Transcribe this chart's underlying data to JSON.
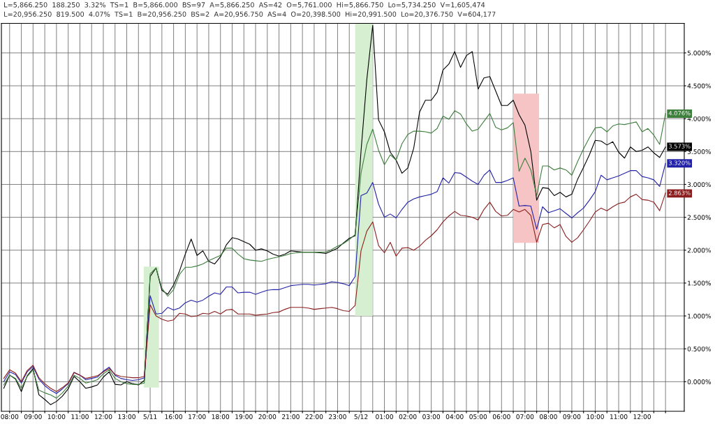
{
  "chart_data": {
    "type": "line",
    "annotations": [
      "L=5,866.250  188.250  3.32%  TS=1  B=5,866.000  BS=97  A=5,866.250  AS=42  O=5,761.000  Hi=5,866.750  Lo=5,734.250  V=1,605,474",
      "L=20,956.250  819.500  4.07%  TS=1  B=20,956.250  BS=2  A=20,956.750  AS=4  O=20,398.500  Hi=20,991.500  Lo=20,376.750  V=604,177",
      {
        "text": "4.076%",
        "y": 4.076
      },
      {
        "text": "3.573%",
        "y": 3.573
      },
      {
        "text": "3.320%",
        "y": 3.32
      },
      {
        "text": "2.863%",
        "y": 2.863
      }
    ],
    "categories": [
      null,
      "08:00",
      null,
      null,
      null,
      "09:00",
      null,
      null,
      null,
      "10:00",
      null,
      null,
      null,
      "11:00",
      null,
      null,
      null,
      "12:00",
      null,
      null,
      null,
      "13:00",
      null,
      null,
      null,
      "5/11",
      null,
      null,
      null,
      "16:00",
      null,
      null,
      null,
      "17:00",
      null,
      null,
      null,
      "18:00",
      null,
      null,
      null,
      "19:00",
      null,
      null,
      null,
      "20:00",
      null,
      null,
      null,
      "21:00",
      null,
      null,
      null,
      "22:00",
      null,
      null,
      null,
      "23:00",
      null,
      null,
      null,
      "5/12",
      null,
      null,
      null,
      "01:00",
      null,
      null,
      null,
      "02:00",
      null,
      null,
      null,
      "03:00",
      null,
      null,
      null,
      "04:00",
      null,
      null,
      null,
      "05:00",
      null,
      null,
      null,
      "06:00",
      null,
      null,
      null,
      "07:00",
      null,
      null,
      null,
      "08:00",
      null,
      null,
      null,
      "09:00",
      null,
      null,
      null,
      "10:00",
      null,
      null,
      null,
      "11:00",
      null,
      null,
      null,
      "12:00",
      null,
      null,
      null,
      null
    ],
    "series": [
      {
        "color": "#000000",
        "values": [
          -0.1,
          0.1,
          0.04,
          -0.15,
          0.09,
          0.2,
          -0.2,
          -0.27,
          -0.35,
          -0.3,
          -0.22,
          -0.11,
          0.08,
          0.0,
          -0.1,
          -0.08,
          -0.05,
          0.07,
          0.15,
          -0.04,
          -0.05,
          0.0,
          -0.03,
          -0.05,
          0.02,
          1.6,
          1.73,
          1.39,
          1.33,
          1.47,
          1.68,
          1.94,
          2.17,
          1.92,
          1.99,
          1.83,
          1.79,
          1.9,
          2.08,
          2.19,
          2.17,
          2.13,
          2.09,
          2.0,
          2.02,
          1.99,
          1.94,
          1.91,
          1.94,
          1.99,
          1.98,
          1.97,
          1.97,
          1.97,
          1.96,
          1.95,
          1.99,
          2.03,
          2.11,
          2.18,
          2.22,
          3.5,
          4.6,
          5.42,
          3.98,
          3.8,
          3.49,
          3.37,
          3.17,
          3.25,
          3.55,
          4.1,
          4.28,
          4.28,
          4.4,
          4.74,
          4.83,
          5.02,
          4.78,
          4.96,
          5.02,
          4.45,
          4.62,
          4.64,
          4.42,
          4.2,
          4.2,
          4.28,
          4.06,
          3.9,
          3.5,
          2.76,
          2.95,
          2.94,
          2.83,
          2.88,
          2.81,
          2.85,
          3.08,
          3.26,
          3.45,
          3.67,
          3.66,
          3.6,
          3.65,
          3.49,
          3.4,
          3.57,
          3.5,
          3.52,
          3.57,
          3.48,
          3.41,
          3.57
        ]
      },
      {
        "color": "#3d7f3d",
        "values": [
          -0.05,
          0.1,
          0.05,
          -0.1,
          0.08,
          0.18,
          -0.13,
          -0.17,
          -0.2,
          -0.25,
          -0.17,
          -0.07,
          0.1,
          0.05,
          -0.02,
          0.0,
          0.03,
          0.12,
          0.18,
          0.05,
          0.0,
          -0.03,
          -0.04,
          -0.04,
          -0.02,
          1.64,
          1.73,
          1.42,
          1.3,
          1.4,
          1.63,
          1.74,
          1.74,
          1.76,
          1.79,
          1.84,
          1.88,
          1.92,
          2.03,
          2.03,
          1.94,
          1.87,
          1.85,
          1.84,
          1.83,
          1.86,
          1.88,
          1.9,
          1.92,
          1.95,
          1.96,
          1.97,
          1.97,
          1.97,
          1.97,
          1.97,
          2.01,
          2.06,
          2.1,
          2.16,
          2.24,
          3.17,
          3.61,
          3.84,
          3.52,
          3.3,
          3.45,
          3.37,
          3.62,
          3.76,
          3.81,
          3.81,
          3.8,
          3.78,
          3.85,
          4.04,
          3.99,
          4.12,
          4.07,
          3.92,
          3.81,
          3.84,
          3.96,
          4.08,
          3.87,
          3.83,
          3.86,
          3.94,
          3.2,
          3.4,
          3.22,
          2.83,
          3.28,
          3.28,
          3.22,
          3.25,
          3.22,
          3.14,
          3.35,
          3.54,
          3.71,
          3.86,
          3.87,
          3.8,
          3.89,
          3.92,
          3.91,
          3.93,
          3.95,
          3.8,
          3.85,
          3.75,
          3.61,
          4.08
        ]
      },
      {
        "color": "#2222a8",
        "values": [
          0.0,
          0.15,
          0.11,
          -0.02,
          0.15,
          0.23,
          0.04,
          -0.06,
          -0.13,
          -0.18,
          -0.11,
          -0.03,
          0.14,
          0.1,
          0.03,
          0.05,
          0.07,
          0.16,
          0.22,
          0.1,
          0.05,
          0.03,
          0.02,
          0.03,
          0.06,
          1.31,
          1.03,
          1.04,
          1.13,
          1.09,
          1.12,
          1.2,
          1.24,
          1.21,
          1.24,
          1.3,
          1.35,
          1.33,
          1.44,
          1.44,
          1.35,
          1.36,
          1.36,
          1.33,
          1.36,
          1.39,
          1.4,
          1.4,
          1.43,
          1.46,
          1.47,
          1.48,
          1.48,
          1.47,
          1.48,
          1.49,
          1.52,
          1.51,
          1.49,
          1.46,
          1.6,
          2.83,
          2.87,
          3.03,
          2.7,
          2.5,
          2.55,
          2.49,
          2.62,
          2.73,
          2.78,
          2.81,
          2.83,
          2.85,
          2.89,
          3.1,
          3.02,
          3.18,
          3.17,
          3.11,
          3.05,
          3.0,
          3.14,
          3.22,
          3.03,
          3.03,
          3.06,
          3.1,
          2.67,
          2.68,
          2.67,
          2.32,
          2.66,
          2.57,
          2.6,
          2.63,
          2.56,
          2.49,
          2.57,
          2.64,
          2.76,
          2.89,
          3.14,
          3.07,
          3.1,
          3.13,
          3.17,
          3.21,
          3.21,
          3.12,
          3.1,
          3.07,
          2.97,
          3.32
        ]
      },
      {
        "color": "#8b1e1e",
        "values": [
          0.05,
          0.18,
          0.13,
          0.0,
          0.17,
          0.25,
          0.06,
          -0.03,
          -0.1,
          -0.15,
          -0.09,
          -0.02,
          0.14,
          0.1,
          0.05,
          0.07,
          0.09,
          0.15,
          0.2,
          0.11,
          0.08,
          0.07,
          0.06,
          0.06,
          0.08,
          1.17,
          1.0,
          0.95,
          0.92,
          0.94,
          1.04,
          1.03,
          0.99,
          1.0,
          1.04,
          1.03,
          1.07,
          1.03,
          1.09,
          1.1,
          1.03,
          1.03,
          1.03,
          1.01,
          1.02,
          1.03,
          1.05,
          1.06,
          1.1,
          1.13,
          1.13,
          1.13,
          1.12,
          1.1,
          1.11,
          1.12,
          1.13,
          1.11,
          1.08,
          1.07,
          1.16,
          1.99,
          2.29,
          2.43,
          2.07,
          1.96,
          2.12,
          1.91,
          2.03,
          2.04,
          2.0,
          2.06,
          2.15,
          2.22,
          2.31,
          2.43,
          2.52,
          2.59,
          2.53,
          2.52,
          2.5,
          2.46,
          2.62,
          2.73,
          2.59,
          2.52,
          2.53,
          2.62,
          2.58,
          2.62,
          2.53,
          2.12,
          2.39,
          2.41,
          2.34,
          2.39,
          2.21,
          2.12,
          2.19,
          2.31,
          2.44,
          2.58,
          2.64,
          2.6,
          2.66,
          2.71,
          2.73,
          2.81,
          2.85,
          2.77,
          2.76,
          2.73,
          2.6,
          2.87
        ]
      }
    ],
    "ylim": [
      -0.45,
      5.45
    ],
    "yticks": [
      {
        "value": 0,
        "label": "0.000%"
      },
      {
        "value": 0.5,
        "label": "0.500%"
      },
      {
        "value": 1,
        "label": "1.000%"
      },
      {
        "value": 1.5,
        "label": "1.500%"
      },
      {
        "value": 2,
        "label": "2.000%"
      },
      {
        "value": 2.5,
        "label": "2.500%"
      },
      {
        "value": 3,
        "label": "3.000%"
      },
      {
        "value": 3.5,
        "label": "3.500%"
      },
      {
        "value": 4,
        "label": "4.000%"
      },
      {
        "value": 4.5,
        "label": "4.500%"
      },
      {
        "value": 5,
        "label": "5.000%"
      }
    ],
    "grid": true,
    "legend": false,
    "marker": "none",
    "line_style": "solid"
  }
}
